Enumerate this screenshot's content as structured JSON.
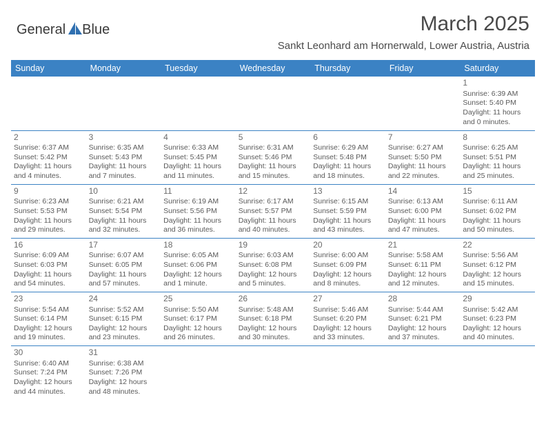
{
  "logo": {
    "text_a": "General",
    "text_b": "Blue"
  },
  "title": "March 2025",
  "location": "Sankt Leonhard am Hornerwald, Lower Austria, Austria",
  "colors": {
    "header_bg": "#3b82c4",
    "header_fg": "#ffffff",
    "text": "#4a4a4a",
    "cell_text": "#5a5a5a",
    "border": "#3b82c4",
    "logo_blue": "#2f6fb0"
  },
  "typography": {
    "title_fontsize": 30,
    "location_fontsize": 15,
    "header_fontsize": 12.5,
    "cell_fontsize": 10.5,
    "daynum_fontsize": 12,
    "logo_fontsize": 20
  },
  "day_headers": [
    "Sunday",
    "Monday",
    "Tuesday",
    "Wednesday",
    "Thursday",
    "Friday",
    "Saturday"
  ],
  "weeks": [
    [
      null,
      null,
      null,
      null,
      null,
      null,
      {
        "n": "1",
        "sr": "6:39 AM",
        "ss": "5:40 PM",
        "d1": "11 hours",
        "d2": "and 0 minutes."
      }
    ],
    [
      {
        "n": "2",
        "sr": "6:37 AM",
        "ss": "5:42 PM",
        "d1": "11 hours",
        "d2": "and 4 minutes."
      },
      {
        "n": "3",
        "sr": "6:35 AM",
        "ss": "5:43 PM",
        "d1": "11 hours",
        "d2": "and 7 minutes."
      },
      {
        "n": "4",
        "sr": "6:33 AM",
        "ss": "5:45 PM",
        "d1": "11 hours",
        "d2": "and 11 minutes."
      },
      {
        "n": "5",
        "sr": "6:31 AM",
        "ss": "5:46 PM",
        "d1": "11 hours",
        "d2": "and 15 minutes."
      },
      {
        "n": "6",
        "sr": "6:29 AM",
        "ss": "5:48 PM",
        "d1": "11 hours",
        "d2": "and 18 minutes."
      },
      {
        "n": "7",
        "sr": "6:27 AM",
        "ss": "5:50 PM",
        "d1": "11 hours",
        "d2": "and 22 minutes."
      },
      {
        "n": "8",
        "sr": "6:25 AM",
        "ss": "5:51 PM",
        "d1": "11 hours",
        "d2": "and 25 minutes."
      }
    ],
    [
      {
        "n": "9",
        "sr": "6:23 AM",
        "ss": "5:53 PM",
        "d1": "11 hours",
        "d2": "and 29 minutes."
      },
      {
        "n": "10",
        "sr": "6:21 AM",
        "ss": "5:54 PM",
        "d1": "11 hours",
        "d2": "and 32 minutes."
      },
      {
        "n": "11",
        "sr": "6:19 AM",
        "ss": "5:56 PM",
        "d1": "11 hours",
        "d2": "and 36 minutes."
      },
      {
        "n": "12",
        "sr": "6:17 AM",
        "ss": "5:57 PM",
        "d1": "11 hours",
        "d2": "and 40 minutes."
      },
      {
        "n": "13",
        "sr": "6:15 AM",
        "ss": "5:59 PM",
        "d1": "11 hours",
        "d2": "and 43 minutes."
      },
      {
        "n": "14",
        "sr": "6:13 AM",
        "ss": "6:00 PM",
        "d1": "11 hours",
        "d2": "and 47 minutes."
      },
      {
        "n": "15",
        "sr": "6:11 AM",
        "ss": "6:02 PM",
        "d1": "11 hours",
        "d2": "and 50 minutes."
      }
    ],
    [
      {
        "n": "16",
        "sr": "6:09 AM",
        "ss": "6:03 PM",
        "d1": "11 hours",
        "d2": "and 54 minutes."
      },
      {
        "n": "17",
        "sr": "6:07 AM",
        "ss": "6:05 PM",
        "d1": "11 hours",
        "d2": "and 57 minutes."
      },
      {
        "n": "18",
        "sr": "6:05 AM",
        "ss": "6:06 PM",
        "d1": "12 hours",
        "d2": "and 1 minute."
      },
      {
        "n": "19",
        "sr": "6:03 AM",
        "ss": "6:08 PM",
        "d1": "12 hours",
        "d2": "and 5 minutes."
      },
      {
        "n": "20",
        "sr": "6:00 AM",
        "ss": "6:09 PM",
        "d1": "12 hours",
        "d2": "and 8 minutes."
      },
      {
        "n": "21",
        "sr": "5:58 AM",
        "ss": "6:11 PM",
        "d1": "12 hours",
        "d2": "and 12 minutes."
      },
      {
        "n": "22",
        "sr": "5:56 AM",
        "ss": "6:12 PM",
        "d1": "12 hours",
        "d2": "and 15 minutes."
      }
    ],
    [
      {
        "n": "23",
        "sr": "5:54 AM",
        "ss": "6:14 PM",
        "d1": "12 hours",
        "d2": "and 19 minutes."
      },
      {
        "n": "24",
        "sr": "5:52 AM",
        "ss": "6:15 PM",
        "d1": "12 hours",
        "d2": "and 23 minutes."
      },
      {
        "n": "25",
        "sr": "5:50 AM",
        "ss": "6:17 PM",
        "d1": "12 hours",
        "d2": "and 26 minutes."
      },
      {
        "n": "26",
        "sr": "5:48 AM",
        "ss": "6:18 PM",
        "d1": "12 hours",
        "d2": "and 30 minutes."
      },
      {
        "n": "27",
        "sr": "5:46 AM",
        "ss": "6:20 PM",
        "d1": "12 hours",
        "d2": "and 33 minutes."
      },
      {
        "n": "28",
        "sr": "5:44 AM",
        "ss": "6:21 PM",
        "d1": "12 hours",
        "d2": "and 37 minutes."
      },
      {
        "n": "29",
        "sr": "5:42 AM",
        "ss": "6:23 PM",
        "d1": "12 hours",
        "d2": "and 40 minutes."
      }
    ],
    [
      {
        "n": "30",
        "sr": "6:40 AM",
        "ss": "7:24 PM",
        "d1": "12 hours",
        "d2": "and 44 minutes."
      },
      {
        "n": "31",
        "sr": "6:38 AM",
        "ss": "7:26 PM",
        "d1": "12 hours",
        "d2": "and 48 minutes."
      },
      null,
      null,
      null,
      null,
      null
    ]
  ],
  "labels": {
    "sunrise": "Sunrise: ",
    "sunset": "Sunset: ",
    "daylight": "Daylight: "
  }
}
